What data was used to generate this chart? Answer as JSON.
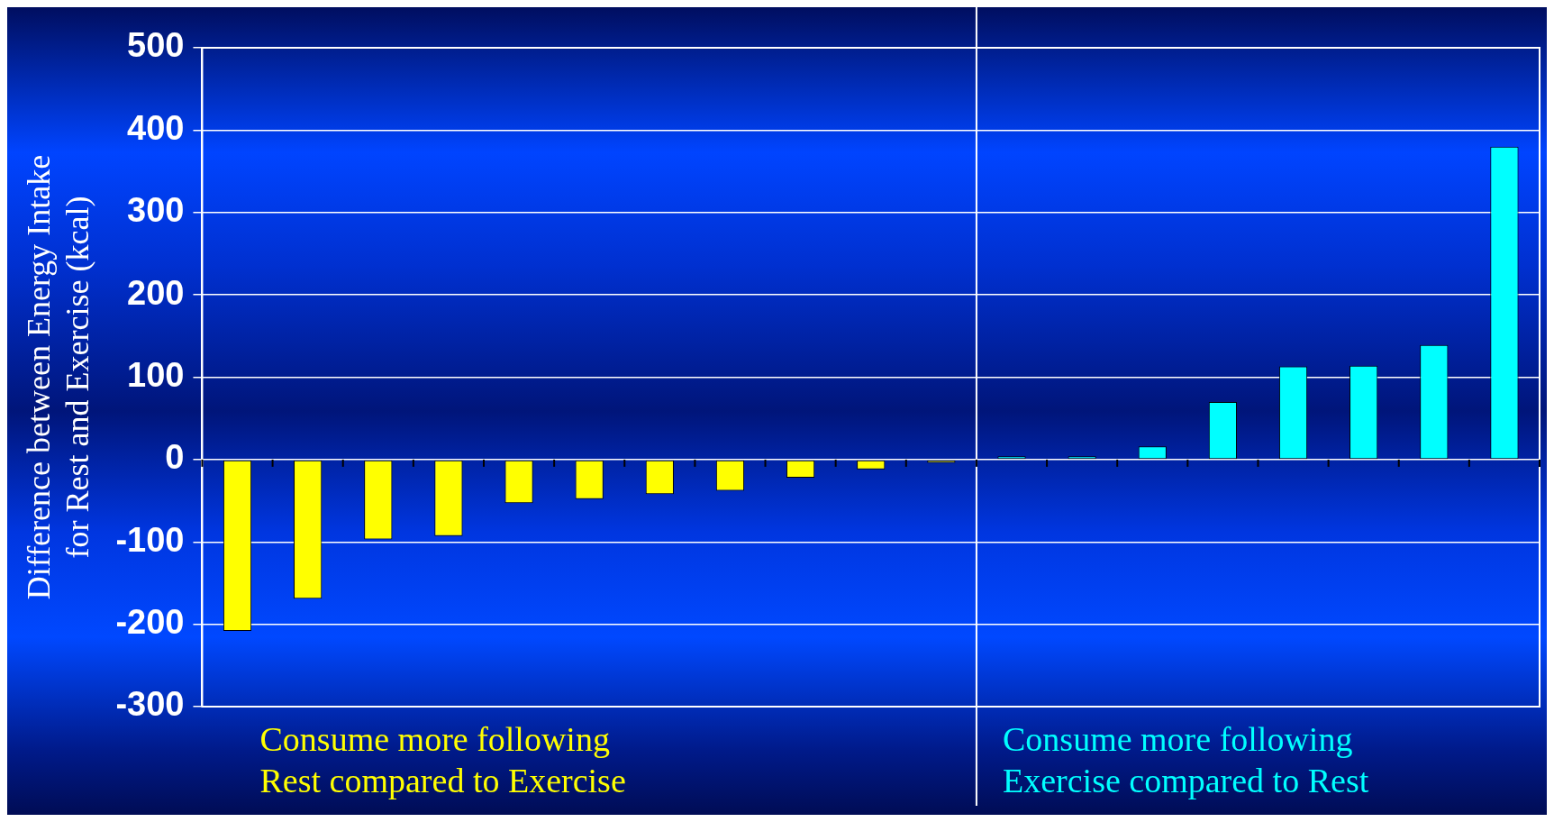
{
  "chart_data": {
    "type": "bar",
    "ylabel": "Difference between Energy Intake\nfor Rest and Exercise (kcal)",
    "categories": [
      null,
      null,
      null,
      null,
      null,
      null,
      null,
      null,
      null,
      null,
      null,
      null,
      null,
      null,
      null,
      null,
      null,
      null,
      null
    ],
    "values": [
      -208,
      -169,
      -97,
      -93,
      -53,
      -48,
      -42,
      -38,
      -22,
      -12,
      -4,
      4,
      4,
      16,
      70,
      113,
      114,
      139,
      380
    ],
    "colors": [
      "#ffff00",
      "#ffff00",
      "#ffff00",
      "#ffff00",
      "#ffff00",
      "#ffff00",
      "#ffff00",
      "#ffff00",
      "#ffff00",
      "#ffff00",
      "#ffff00",
      "#00ffff",
      "#00ffff",
      "#00ffff",
      "#00ffff",
      "#00ffff",
      "#00ffff",
      "#00ffff",
      "#00ffff"
    ],
    "ylim": [
      -300,
      500
    ],
    "yticks": [
      -300,
      -200,
      -100,
      0,
      100,
      200,
      300,
      400,
      500
    ],
    "grid": "y",
    "legend": false,
    "annotations": [
      "Consume more following\nRest compared to Exercise",
      "Consume more following\nExercise compared to Rest"
    ]
  }
}
